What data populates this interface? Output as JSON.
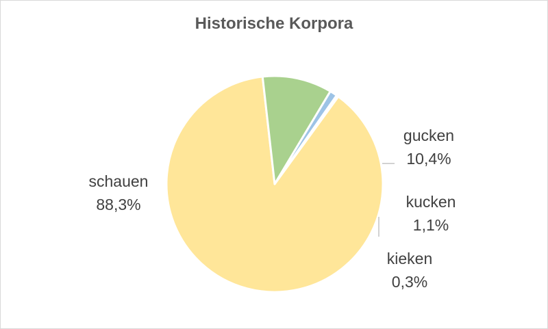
{
  "chart_data": {
    "type": "pie",
    "title": "Historische Korpora",
    "slices": [
      {
        "label": "schauen",
        "value": 88.3,
        "display": "88,3%",
        "color": "#FFE699"
      },
      {
        "label": "gucken",
        "value": 10.4,
        "display": "10,4%",
        "color": "#A9D18E"
      },
      {
        "label": "kucken",
        "value": 1.1,
        "display": "1,1%",
        "color": "#9DC3E6"
      },
      {
        "label": "kieken",
        "value": 0.3,
        "display": "0,3%",
        "color": "#C9C9C9"
      }
    ],
    "legend": "none",
    "data_labels": "category-and-percentage"
  },
  "colors": {
    "slice_border": "#FFFFFF",
    "label_text": "#404040",
    "title_text": "#595959",
    "leader_line": "#A6A6A6"
  }
}
